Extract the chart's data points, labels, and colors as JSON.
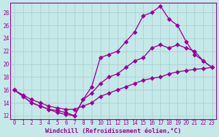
{
  "xlabel": "Windchill (Refroidissement éolien,°C)",
  "bg_color": "#c5e8e8",
  "grid_color": "#aacfcf",
  "line_color": "#990099",
  "spine_color": "#880088",
  "xlim_min": -0.5,
  "xlim_max": 23.5,
  "ylim_min": 11.5,
  "ylim_max": 29.5,
  "yticks": [
    12,
    14,
    16,
    18,
    20,
    22,
    24,
    26,
    28
  ],
  "xticks": [
    0,
    1,
    2,
    3,
    4,
    5,
    6,
    7,
    8,
    9,
    10,
    11,
    12,
    13,
    14,
    15,
    16,
    17,
    18,
    19,
    20,
    21,
    22,
    23
  ],
  "line1_x": [
    0,
    1,
    2,
    3,
    4,
    5,
    6,
    7,
    8,
    9,
    10,
    11,
    12,
    13,
    14,
    15,
    16,
    17,
    18,
    19,
    20,
    21,
    22,
    23
  ],
  "line1_y": [
    16.0,
    15.0,
    14.0,
    13.5,
    13.0,
    12.5,
    12.2,
    12.0,
    14.5,
    16.5,
    21.0,
    21.5,
    22.0,
    23.5,
    25.0,
    27.5,
    28.0,
    29.0,
    27.0,
    26.0,
    23.5,
    21.5,
    20.5,
    19.5
  ],
  "line2_x": [
    0,
    1,
    2,
    3,
    4,
    5,
    6,
    7,
    8,
    9,
    10,
    11,
    12,
    13,
    14,
    15,
    16,
    17,
    18,
    19,
    20,
    21,
    22,
    23
  ],
  "line2_y": [
    16.0,
    15.0,
    14.0,
    13.5,
    13.0,
    12.8,
    12.5,
    12.0,
    14.5,
    15.5,
    17.0,
    18.0,
    18.5,
    19.5,
    20.5,
    21.0,
    22.5,
    23.0,
    22.5,
    23.0,
    22.5,
    22.0,
    20.5,
    19.5
  ],
  "line3_x": [
    0,
    1,
    2,
    3,
    4,
    5,
    6,
    7,
    8,
    9,
    10,
    11,
    12,
    13,
    14,
    15,
    16,
    17,
    18,
    19,
    20,
    21,
    22,
    23
  ],
  "line3_y": [
    16.0,
    15.2,
    14.5,
    14.0,
    13.5,
    13.2,
    13.0,
    13.0,
    13.5,
    14.0,
    15.0,
    15.5,
    16.0,
    16.5,
    17.0,
    17.5,
    17.8,
    18.0,
    18.5,
    18.8,
    19.0,
    19.2,
    19.3,
    19.5
  ],
  "markersize": 3,
  "linewidth": 1.0,
  "tick_fontsize": 5.5,
  "label_fontsize": 6.5
}
